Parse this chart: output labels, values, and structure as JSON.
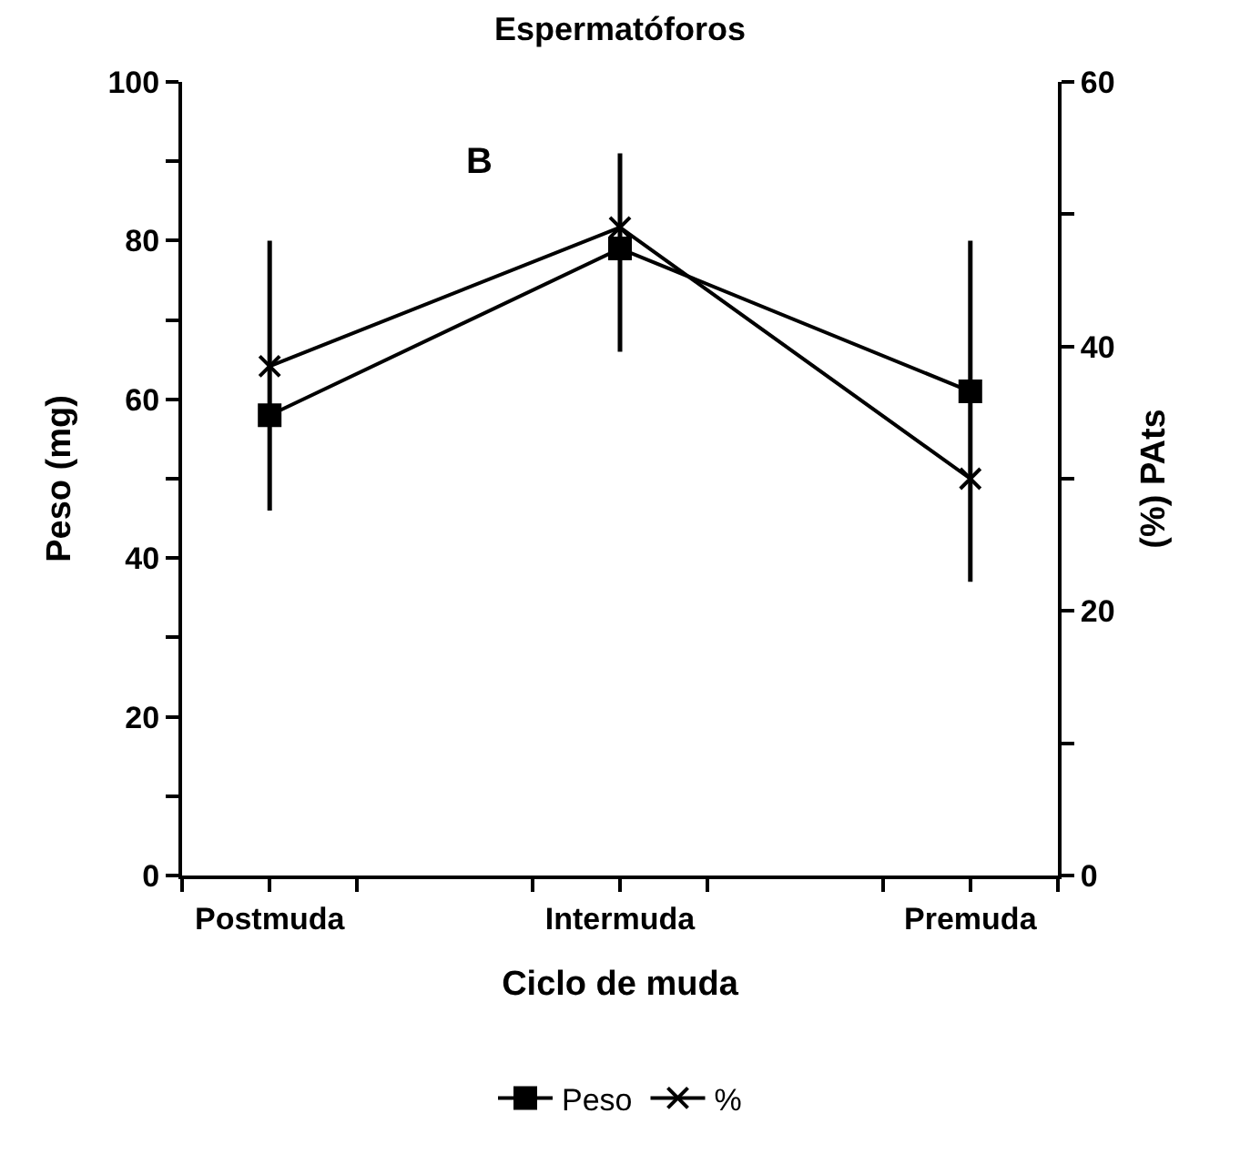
{
  "chart_data": {
    "type": "line",
    "title": "Espermatóforos",
    "xlabel": "Ciclo de muda",
    "ylabel": "Peso (mg)",
    "y2label": "(%) PAts",
    "annotations": [
      "B"
    ],
    "categories": [
      "Postmuda",
      "Intermuda",
      "Premuda"
    ],
    "series": [
      {
        "name": "Peso",
        "color": "#000000",
        "marker": "square",
        "values": [
          58,
          79,
          61
        ],
        "errors": [
          [
            46,
            80
          ],
          [
            66,
            91
          ],
          [
            37,
            80
          ]
        ]
      },
      {
        "name": "%",
        "color": "#000000",
        "marker": "cross",
        "axis": "y2",
        "values": [
          38.5,
          49,
          30
        ]
      }
    ],
    "ylim": [
      0,
      100
    ],
    "yticks": [
      0,
      {
        "value": 10,
        "label": null
      },
      20,
      {
        "value": 30,
        "label": null
      },
      40,
      {
        "value": 50,
        "label": null
      },
      60,
      {
        "value": 70,
        "label": null
      },
      80,
      {
        "value": 90,
        "label": null
      },
      100
    ],
    "y2lim": [
      0,
      60
    ],
    "y2ticks": [
      0,
      {
        "value": 10,
        "label": null
      },
      20,
      {
        "value": 30,
        "label": null
      },
      40,
      {
        "value": 50,
        "label": null
      },
      60
    ],
    "grid": false,
    "legend": "bottom",
    "line_style": "solid"
  }
}
